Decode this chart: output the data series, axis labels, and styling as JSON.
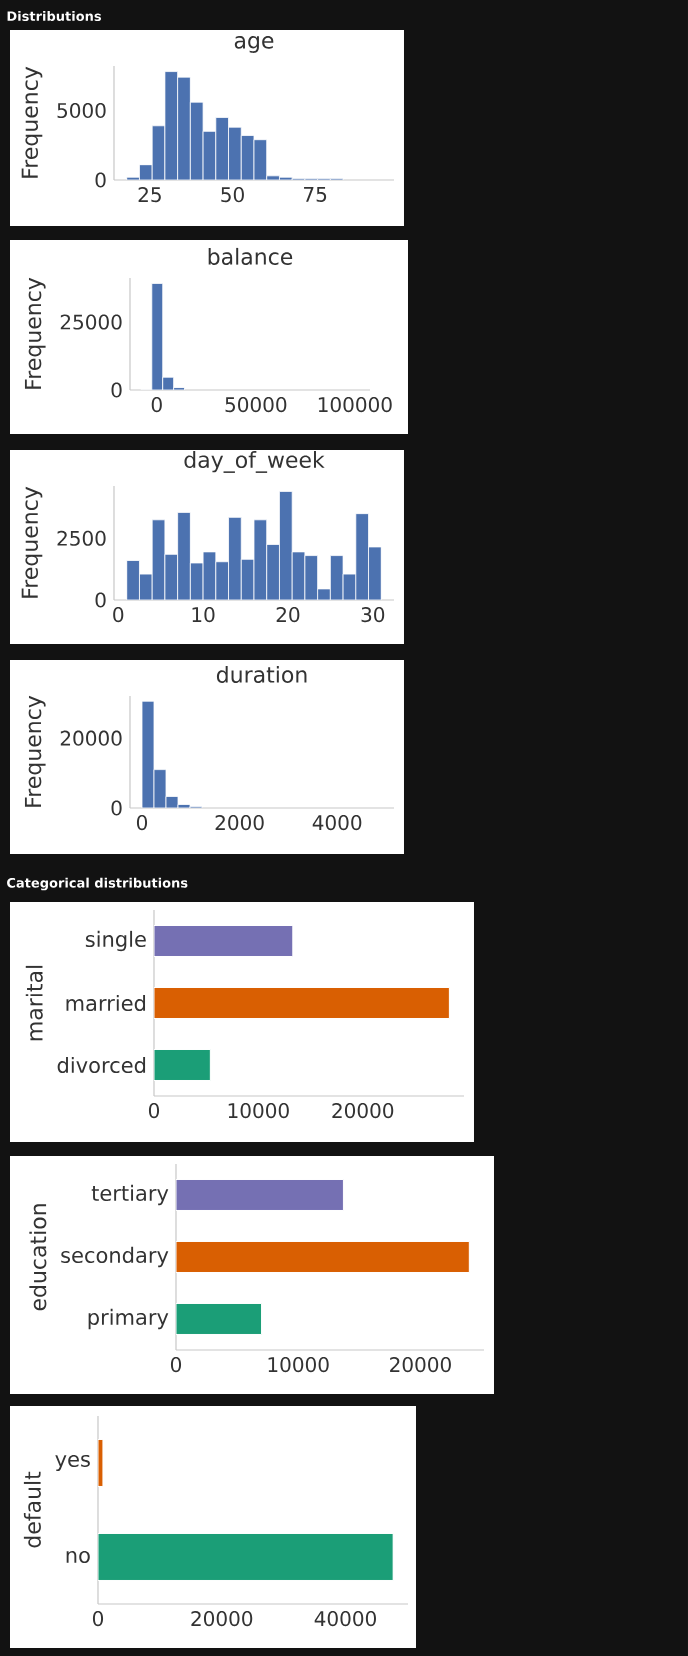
{
  "chart_data": [
    {
      "type": "histogram",
      "title": "age",
      "ylabel": "Frequency",
      "annotations": [
        "Distributions"
      ],
      "color": "#4c72b0",
      "bins": [
        18,
        21.85,
        25.7,
        29.55,
        33.4,
        37.25,
        41.1,
        44.95,
        48.8,
        52.65,
        56.5,
        60.35,
        64.2,
        68.05,
        71.9,
        75.75,
        79.6,
        83.45,
        87.3,
        91.15,
        95
      ],
      "values": [
        200,
        1100,
        3900,
        7800,
        7400,
        5600,
        3500,
        4500,
        3800,
        3200,
        2900,
        300,
        200,
        100,
        100,
        100,
        100,
        null,
        null,
        null
      ],
      "xlim": [
        14.15,
        98.85
      ],
      "ylim": [
        0,
        8200
      ],
      "xticks": [
        25,
        50,
        75
      ],
      "yticks": [
        0,
        5000
      ]
    },
    {
      "type": "histogram",
      "title": "balance",
      "ylabel": "Frequency",
      "color": "#4c72b0",
      "bins": [
        -8019,
        -2512,
        2996,
        8503,
        14010,
        19518,
        25025,
        30532,
        36039,
        41547,
        47054,
        52561,
        58069,
        63576,
        69083,
        74591,
        80098,
        85605,
        91112,
        96620,
        102127
      ],
      "values": [
        100,
        39200,
        4700,
        900,
        null,
        null,
        null,
        null,
        null,
        null,
        null,
        null,
        null,
        null,
        null,
        null,
        null,
        null,
        null,
        null
      ],
      "xlim": [
        -13526,
        107634
      ],
      "ylim": [
        0,
        41200
      ],
      "xticks": [
        0,
        50000,
        100000
      ],
      "yticks": [
        0,
        25000
      ]
    },
    {
      "type": "histogram",
      "title": "day_of_week",
      "ylabel": "Frequency",
      "color": "#4c72b0",
      "bins": [
        1,
        2.5,
        4,
        5.5,
        7,
        8.5,
        10,
        11.5,
        13,
        14.5,
        16,
        17.5,
        19,
        20.5,
        22,
        23.5,
        25,
        26.5,
        28,
        29.5,
        31
      ],
      "values": [
        1600,
        1050,
        3250,
        1850,
        3550,
        1500,
        1950,
        1550,
        3350,
        1650,
        3250,
        2250,
        4400,
        1950,
        1800,
        450,
        1800,
        1050,
        3500,
        2150
      ],
      "xlim": [
        -0.5,
        32.5
      ],
      "ylim": [
        0,
        4620
      ],
      "xticks": [
        0,
        10,
        20,
        30
      ],
      "yticks": [
        0,
        2500
      ]
    },
    {
      "type": "histogram",
      "title": "duration",
      "ylabel": "Frequency",
      "color": "#4c72b0",
      "bins": [
        0,
        246,
        492,
        738,
        984,
        1230,
        1475,
        1721,
        1967,
        2213,
        2459,
        2705,
        2951,
        3197,
        3443,
        3689,
        3934,
        4180,
        4426,
        4672,
        4918
      ],
      "values": [
        30600,
        11000,
        3300,
        1000,
        400,
        null,
        null,
        null,
        null,
        null,
        null,
        null,
        null,
        null,
        null,
        null,
        null,
        null,
        null,
        null
      ],
      "xlim": [
        -246,
        5164
      ],
      "ylim": [
        0,
        32100
      ],
      "xticks": [
        0,
        2000,
        4000
      ],
      "yticks": [
        0,
        20000
      ]
    },
    {
      "type": "bar",
      "orientation": "horizontal",
      "ylabel": "marital",
      "annotations": [
        "Categorical distributions"
      ],
      "categories": [
        "single",
        "married",
        "divorced"
      ],
      "values": [
        13300,
        28300,
        5400
      ],
      "colors": [
        "#7570b3",
        "#d95f02",
        "#1b9e77"
      ],
      "xlim": [
        0,
        29700
      ],
      "xticks": [
        0,
        10000,
        20000
      ]
    },
    {
      "type": "bar",
      "orientation": "horizontal",
      "ylabel": "education",
      "categories": [
        "tertiary",
        "secondary",
        "primary"
      ],
      "values": [
        13700,
        24000,
        7000
      ],
      "colors": [
        "#7570b3",
        "#d95f02",
        "#1b9e77"
      ],
      "xlim": [
        0,
        25200
      ],
      "xticks": [
        0,
        10000,
        20000
      ]
    },
    {
      "type": "bar",
      "orientation": "horizontal",
      "ylabel": "default",
      "categories": [
        "yes",
        "no"
      ],
      "values": [
        800,
        47700
      ],
      "colors": [
        "#d95f02",
        "#1b9e77"
      ],
      "xlim": [
        0,
        50100
      ],
      "xticks": [
        0,
        20000,
        40000
      ]
    }
  ]
}
